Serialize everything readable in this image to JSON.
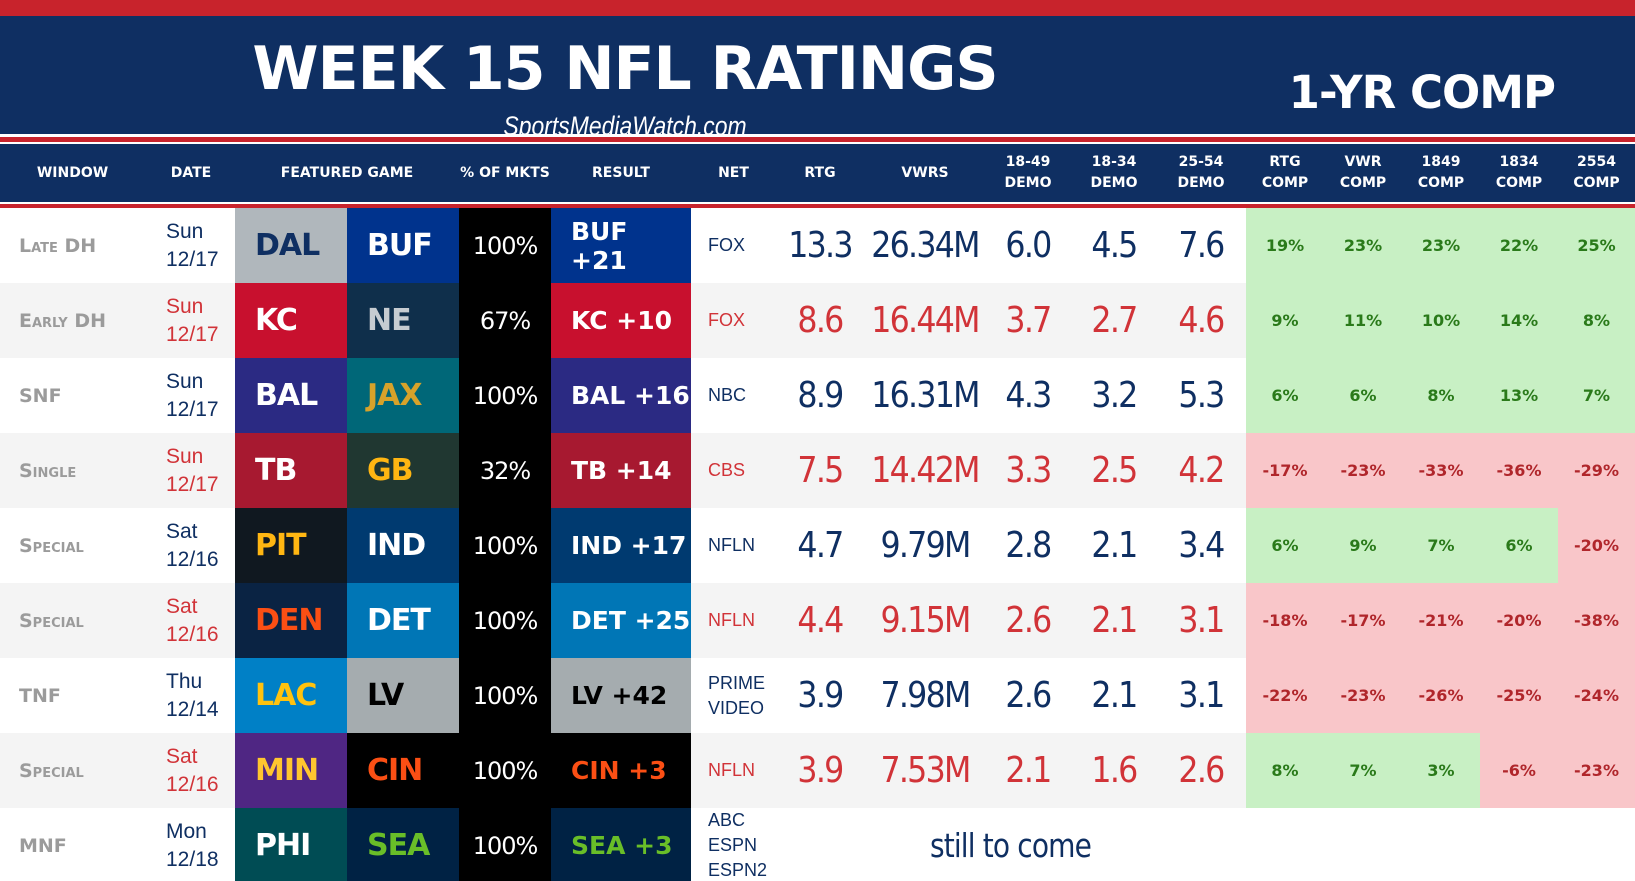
{
  "header": {
    "title": "WEEK 15 NFL RATINGS",
    "subtitle": "SportsMediaWatch.com",
    "right_label": "1-YR COMP"
  },
  "columns": {
    "window": "WINDOW",
    "date": "DATE",
    "game": "FEATURED GAME",
    "pct": "% OF MKTS",
    "result": "RESULT",
    "net": "NET",
    "rtg": "RTG",
    "vwrs": "VWRS",
    "d1849": [
      "18-49",
      "DEMO"
    ],
    "d1834": [
      "18-34",
      "DEMO"
    ],
    "d2554": [
      "25-54",
      "DEMO"
    ],
    "rtg_comp": [
      "RTG",
      "COMP"
    ],
    "vwr_comp": [
      "VWR",
      "COMP"
    ],
    "c1849": [
      "1849",
      "COMP"
    ],
    "c1834": [
      "1834",
      "COMP"
    ],
    "c2554": [
      "2554",
      "COMP"
    ]
  },
  "colors": {
    "navy": "#0f2f62",
    "red": "#c8232c",
    "positive_bg": "#c8f0c4",
    "negative_bg": "#f9c6c9"
  },
  "rows": [
    {
      "window": "Late DH",
      "day": "Sun",
      "date": "12/17",
      "away": {
        "abbr": "DAL",
        "bg": "#b0b7bc",
        "fg": "#0f2f62"
      },
      "home": {
        "abbr": "BUF",
        "bg": "#00338d",
        "fg": "#ffffff"
      },
      "pct": "100%",
      "result": {
        "text": "BUF +21",
        "bg": "#00338d",
        "fg": "#ffffff"
      },
      "net": [
        "FOX"
      ],
      "rtg": "13.3",
      "vwrs": "26.34M",
      "d1849": "6.0",
      "d1834": "4.5",
      "d2554": "7.6",
      "comps": [
        "19%",
        "23%",
        "23%",
        "22%",
        "25%"
      ],
      "comp_signs": [
        "pos",
        "pos",
        "pos",
        "pos",
        "pos"
      ],
      "color": "blue"
    },
    {
      "window": "Early DH",
      "day": "Sun",
      "date": "12/17",
      "away": {
        "abbr": "KC",
        "bg": "#c8102e",
        "fg": "#ffffff"
      },
      "home": {
        "abbr": "NE",
        "bg": "#0f2f4b",
        "fg": "#c6ccd1"
      },
      "pct": "67%",
      "result": {
        "text": "KC +10",
        "bg": "#c8102e",
        "fg": "#ffffff"
      },
      "net": [
        "FOX"
      ],
      "rtg": "8.6",
      "vwrs": "16.44M",
      "d1849": "3.7",
      "d1834": "2.7",
      "d2554": "4.6",
      "comps": [
        "9%",
        "11%",
        "10%",
        "14%",
        "8%"
      ],
      "comp_signs": [
        "pos",
        "pos",
        "pos",
        "pos",
        "pos"
      ],
      "color": "red"
    },
    {
      "window": "SNF",
      "day": "Sun",
      "date": "12/17",
      "away": {
        "abbr": "BAL",
        "bg": "#2b2a83",
        "fg": "#ffffff"
      },
      "home": {
        "abbr": "JAX",
        "bg": "#006778",
        "fg": "#d7a22a"
      },
      "pct": "100%",
      "result": {
        "text": "BAL +16",
        "bg": "#2b2a83",
        "fg": "#ffffff"
      },
      "net": [
        "NBC"
      ],
      "rtg": "8.9",
      "vwrs": "16.31M",
      "d1849": "4.3",
      "d1834": "3.2",
      "d2554": "5.3",
      "comps": [
        "6%",
        "6%",
        "8%",
        "13%",
        "7%"
      ],
      "comp_signs": [
        "pos",
        "pos",
        "pos",
        "pos",
        "pos"
      ],
      "color": "blue"
    },
    {
      "window": "Single",
      "day": "Sun",
      "date": "12/17",
      "away": {
        "abbr": "TB",
        "bg": "#a71930",
        "fg": "#ffffff"
      },
      "home": {
        "abbr": "GB",
        "bg": "#203731",
        "fg": "#ffb612"
      },
      "pct": "32%",
      "result": {
        "text": "TB +14",
        "bg": "#a71930",
        "fg": "#ffffff"
      },
      "net": [
        "CBS"
      ],
      "rtg": "7.5",
      "vwrs": "14.42M",
      "d1849": "3.3",
      "d1834": "2.5",
      "d2554": "4.2",
      "comps": [
        "-17%",
        "-23%",
        "-33%",
        "-36%",
        "-29%"
      ],
      "comp_signs": [
        "neg",
        "neg",
        "neg",
        "neg",
        "neg"
      ],
      "color": "red"
    },
    {
      "window": "Special",
      "day": "Sat",
      "date": "12/16",
      "away": {
        "abbr": "PIT",
        "bg": "#101820",
        "fg": "#ffb612"
      },
      "home": {
        "abbr": "IND",
        "bg": "#003a70",
        "fg": "#ffffff"
      },
      "pct": "100%",
      "result": {
        "text": "IND +17",
        "bg": "#003a70",
        "fg": "#ffffff"
      },
      "net": [
        "NFLN"
      ],
      "rtg": "4.7",
      "vwrs": "9.79M",
      "d1849": "2.8",
      "d1834": "2.1",
      "d2554": "3.4",
      "comps": [
        "6%",
        "9%",
        "7%",
        "6%",
        "-20%"
      ],
      "comp_signs": [
        "pos",
        "pos",
        "pos",
        "pos",
        "neg"
      ],
      "color": "blue"
    },
    {
      "window": "Special",
      "day": "Sat",
      "date": "12/16",
      "away": {
        "abbr": "DEN",
        "bg": "#0a2343",
        "fg": "#fb4f14"
      },
      "home": {
        "abbr": "DET",
        "bg": "#0076b6",
        "fg": "#ffffff"
      },
      "pct": "100%",
      "result": {
        "text": "DET +25",
        "bg": "#0076b6",
        "fg": "#ffffff"
      },
      "net": [
        "NFLN"
      ],
      "rtg": "4.4",
      "vwrs": "9.15M",
      "d1849": "2.6",
      "d1834": "2.1",
      "d2554": "3.1",
      "comps": [
        "-18%",
        "-17%",
        "-21%",
        "-20%",
        "-38%"
      ],
      "comp_signs": [
        "neg",
        "neg",
        "neg",
        "neg",
        "neg"
      ],
      "color": "red"
    },
    {
      "window": "TNF",
      "day": "Thu",
      "date": "12/14",
      "away": {
        "abbr": "LAC",
        "bg": "#0080c6",
        "fg": "#ffc20e"
      },
      "home": {
        "abbr": "LV",
        "bg": "#a5acaf",
        "fg": "#000000"
      },
      "pct": "100%",
      "result": {
        "text": "LV +42",
        "bg": "#a5acaf",
        "fg": "#000000"
      },
      "net": [
        "PRIME",
        "VIDEO"
      ],
      "rtg": "3.9",
      "vwrs": "7.98M",
      "d1849": "2.6",
      "d1834": "2.1",
      "d2554": "3.1",
      "comps": [
        "-22%",
        "-23%",
        "-26%",
        "-25%",
        "-24%"
      ],
      "comp_signs": [
        "neg",
        "neg",
        "neg",
        "neg",
        "neg"
      ],
      "color": "blue"
    },
    {
      "window": "Special",
      "day": "Sat",
      "date": "12/16",
      "away": {
        "abbr": "MIN",
        "bg": "#4f2683",
        "fg": "#ffc62f"
      },
      "home": {
        "abbr": "CIN",
        "bg": "#000000",
        "fg": "#fb4f14"
      },
      "pct": "100%",
      "result": {
        "text": "CIN +3",
        "bg": "#000000",
        "fg": "#fb4f14"
      },
      "net": [
        "NFLN"
      ],
      "rtg": "3.9",
      "vwrs": "7.53M",
      "d1849": "2.1",
      "d1834": "1.6",
      "d2554": "2.6",
      "comps": [
        "8%",
        "7%",
        "3%",
        "-6%",
        "-23%"
      ],
      "comp_signs": [
        "pos",
        "pos",
        "pos",
        "neg",
        "neg"
      ],
      "color": "red"
    },
    {
      "window": "MNF",
      "day": "Mon",
      "date": "12/18",
      "away": {
        "abbr": "PHI",
        "bg": "#004c54",
        "fg": "#ffffff"
      },
      "home": {
        "abbr": "SEA",
        "bg": "#002244",
        "fg": "#69be28"
      },
      "pct": "100%",
      "result": {
        "text": "SEA +3",
        "bg": "#002244",
        "fg": "#69be28"
      },
      "net": [
        "ABC",
        "ESPN",
        "ESPN2"
      ],
      "pending": "still to come",
      "color": "blue"
    }
  ]
}
